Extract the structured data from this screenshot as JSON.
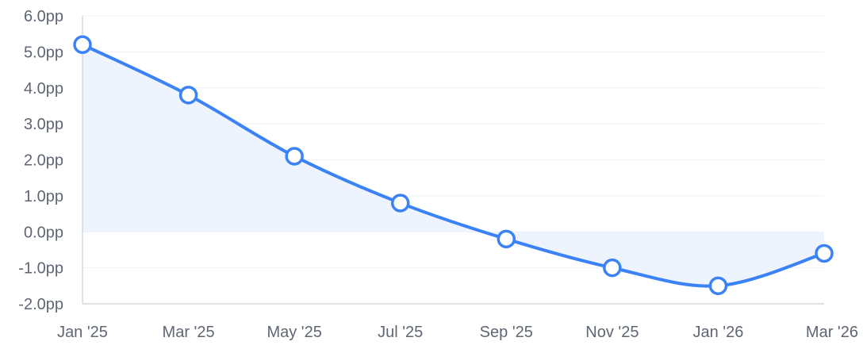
{
  "chart_data": {
    "type": "area",
    "title": "",
    "xlabel": "",
    "ylabel": "",
    "categories": [
      "Jan '25",
      "Mar '25",
      "May '25",
      "Jul '25",
      "Sep '25",
      "Nov '25",
      "Jan '26",
      "Mar '26"
    ],
    "series": [
      {
        "values": [
          5.2,
          3.8,
          2.1,
          0.8,
          -0.2,
          -1.0,
          -1.5,
          -0.6
        ]
      }
    ],
    "y_ticks": [
      "6.0pp",
      "5.0pp",
      "4.0pp",
      "3.0pp",
      "2.0pp",
      "1.0pp",
      "0.0pp",
      "-1.0pp",
      "-2.0pp"
    ],
    "ylim": [
      -2,
      6
    ],
    "y_unit": "pp",
    "grid": true,
    "legend": "none",
    "colors": {
      "line": "#3b82f6",
      "fill": "#eef4fe",
      "grid": "#eef0f3",
      "axis": "#d4d8de",
      "text": "#5f6673"
    }
  }
}
